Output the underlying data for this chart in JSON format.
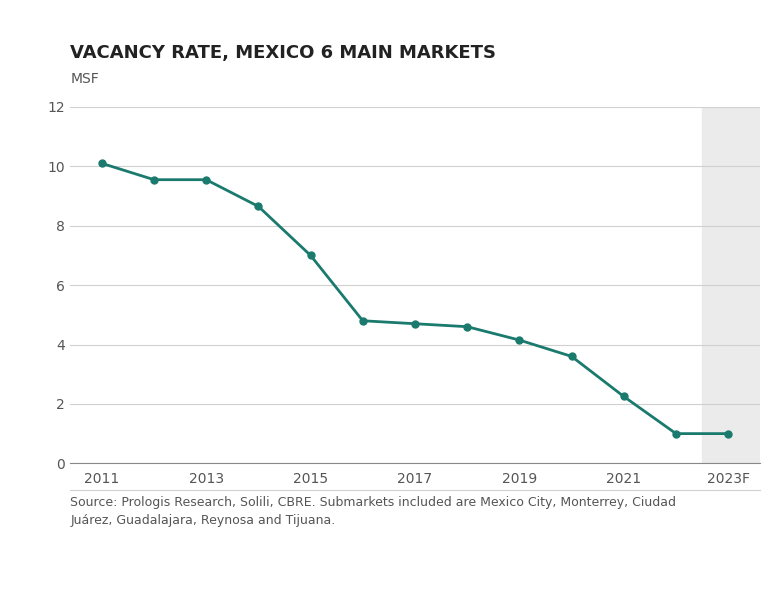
{
  "title": "VACANCY RATE, MEXICO 6 MAIN MARKETS",
  "ylabel": "MSF",
  "source_text": "Source: Prologis Research, Solili, CBRE. Submarkets included are Mexico City, Monterrey, Ciudad\nJuárez, Guadalajara, Reynosa and Tijuana.",
  "x_values": [
    2011,
    2012,
    2013,
    2014,
    2015,
    2016,
    2017,
    2018,
    2019,
    2020,
    2021,
    2022,
    2023
  ],
  "y_values": [
    10.1,
    9.55,
    9.55,
    8.65,
    7.0,
    4.8,
    4.7,
    4.6,
    4.15,
    3.6,
    2.25,
    1.0,
    1.0
  ],
  "x_tick_positions": [
    2011,
    2013,
    2015,
    2017,
    2019,
    2021,
    2023
  ],
  "x_tick_labels": [
    "2011",
    "2013",
    "2015",
    "2017",
    "2019",
    "2021",
    "2023F"
  ],
  "ylim": [
    0,
    12
  ],
  "yticks": [
    0,
    2,
    4,
    6,
    8,
    10,
    12
  ],
  "xlim_min": 2010.4,
  "xlim_max": 2023.6,
  "forecast_start": 2022.5,
  "line_color": "#1a7a6e",
  "marker_color": "#1a7a6e",
  "background_color": "#ffffff",
  "forecast_shade_color": "#ebebeb",
  "grid_color": "#d0d0d0",
  "title_fontsize": 13,
  "ylabel_fontsize": 10,
  "tick_fontsize": 10,
  "source_fontsize": 9,
  "title_color": "#222222",
  "ylabel_color": "#555555",
  "tick_color": "#555555",
  "source_color": "#555555",
  "spine_color": "#888888"
}
